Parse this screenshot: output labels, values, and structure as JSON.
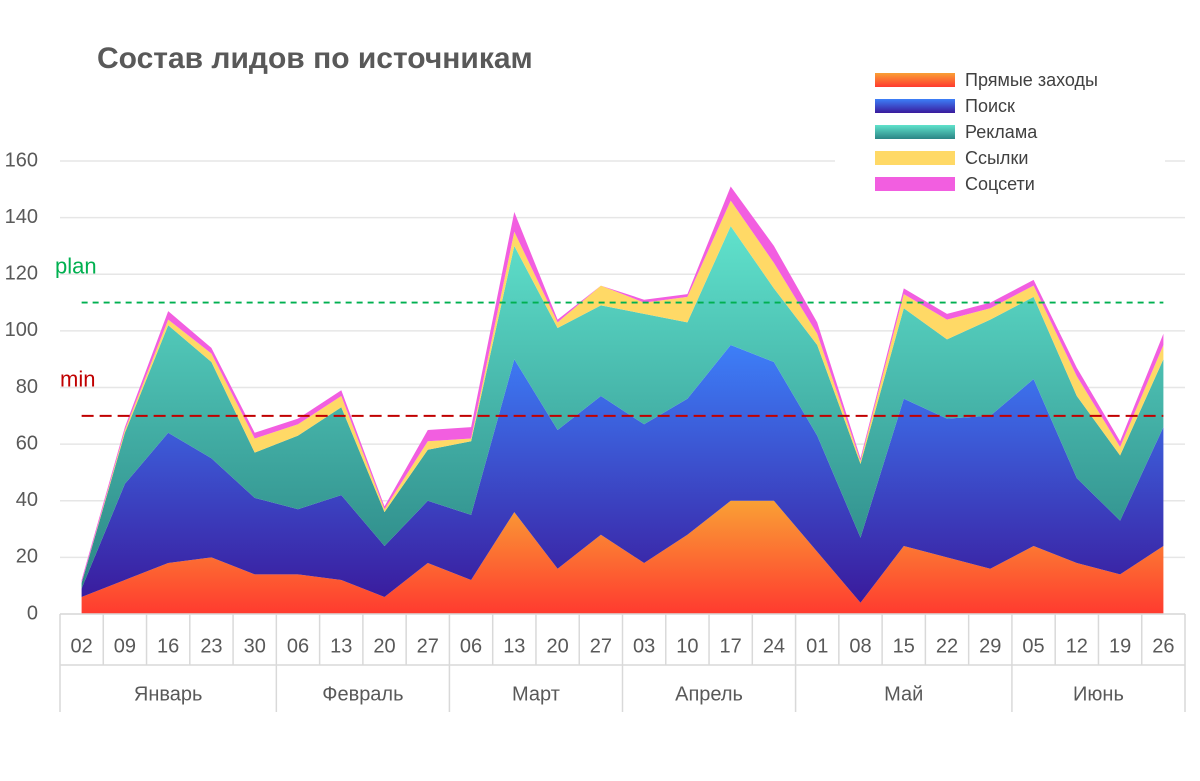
{
  "chart_data": {
    "type": "stacked-area",
    "title": "Состав лидов по источникам",
    "groups": [
      {
        "name": "Январь",
        "categories": [
          "02",
          "09",
          "16",
          "23",
          "30"
        ]
      },
      {
        "name": "Февраль",
        "categories": [
          "06",
          "13",
          "20",
          "27"
        ]
      },
      {
        "name": "Март",
        "categories": [
          "06",
          "13",
          "20",
          "27"
        ]
      },
      {
        "name": "Апрель",
        "categories": [
          "03",
          "10",
          "17",
          "24"
        ]
      },
      {
        "name": "Май",
        "categories": [
          "01",
          "08",
          "15",
          "22",
          "29"
        ]
      },
      {
        "name": "Июнь",
        "categories": [
          "05",
          "12",
          "19",
          "26"
        ]
      }
    ],
    "series": [
      {
        "name": "Прямые заходы",
        "colors": [
          "#f9a035",
          "#ff3a2f"
        ],
        "values": [
          6,
          12,
          18,
          20,
          14,
          14,
          12,
          6,
          18,
          12,
          36,
          16,
          28,
          18,
          28,
          40,
          40,
          22,
          4,
          24,
          20,
          16,
          24,
          18,
          14,
          24
        ]
      },
      {
        "name": "Поиск",
        "colors": [
          "#3d7ff8",
          "#3a1a9c"
        ],
        "values": [
          3,
          34,
          46,
          35,
          27,
          23,
          30,
          18,
          22,
          23,
          54,
          49,
          49,
          49,
          48,
          55,
          49,
          41,
          23,
          52,
          49,
          54,
          59,
          30,
          19,
          42
        ]
      },
      {
        "name": "Реклама",
        "colors": [
          "#60e2cc",
          "#2b8585"
        ],
        "values": [
          2,
          18,
          38,
          34,
          16,
          26,
          31,
          12,
          18,
          26,
          40,
          36,
          32,
          39,
          27,
          42,
          26,
          32,
          26,
          32,
          28,
          34,
          29,
          29,
          23,
          24
        ]
      },
      {
        "name": "Ссылки",
        "colors": [
          "#ffd966",
          "#ffd966"
        ],
        "values": [
          0,
          1,
          2,
          3,
          5,
          4,
          4,
          1,
          3,
          1,
          5,
          2,
          7,
          4,
          9,
          9,
          9,
          4,
          1,
          5,
          7,
          4,
          4,
          7,
          3,
          5
        ]
      },
      {
        "name": "Соцсети",
        "colors": [
          "#f25ee0",
          "#f25ee0"
        ],
        "values": [
          1,
          1,
          3,
          2,
          2,
          2,
          2,
          1,
          4,
          4,
          7,
          1,
          0,
          1,
          1,
          5,
          6,
          4,
          1,
          2,
          2,
          2,
          2,
          3,
          2,
          4
        ]
      }
    ],
    "reference_lines": [
      {
        "label": "plan",
        "value": 110,
        "color": "#00b050"
      },
      {
        "label": "min",
        "value": 70,
        "color": "#c00000"
      }
    ],
    "ylim": [
      0,
      160
    ],
    "yticks": [
      0,
      20,
      40,
      60,
      80,
      100,
      120,
      140,
      160
    ],
    "grid": true
  }
}
